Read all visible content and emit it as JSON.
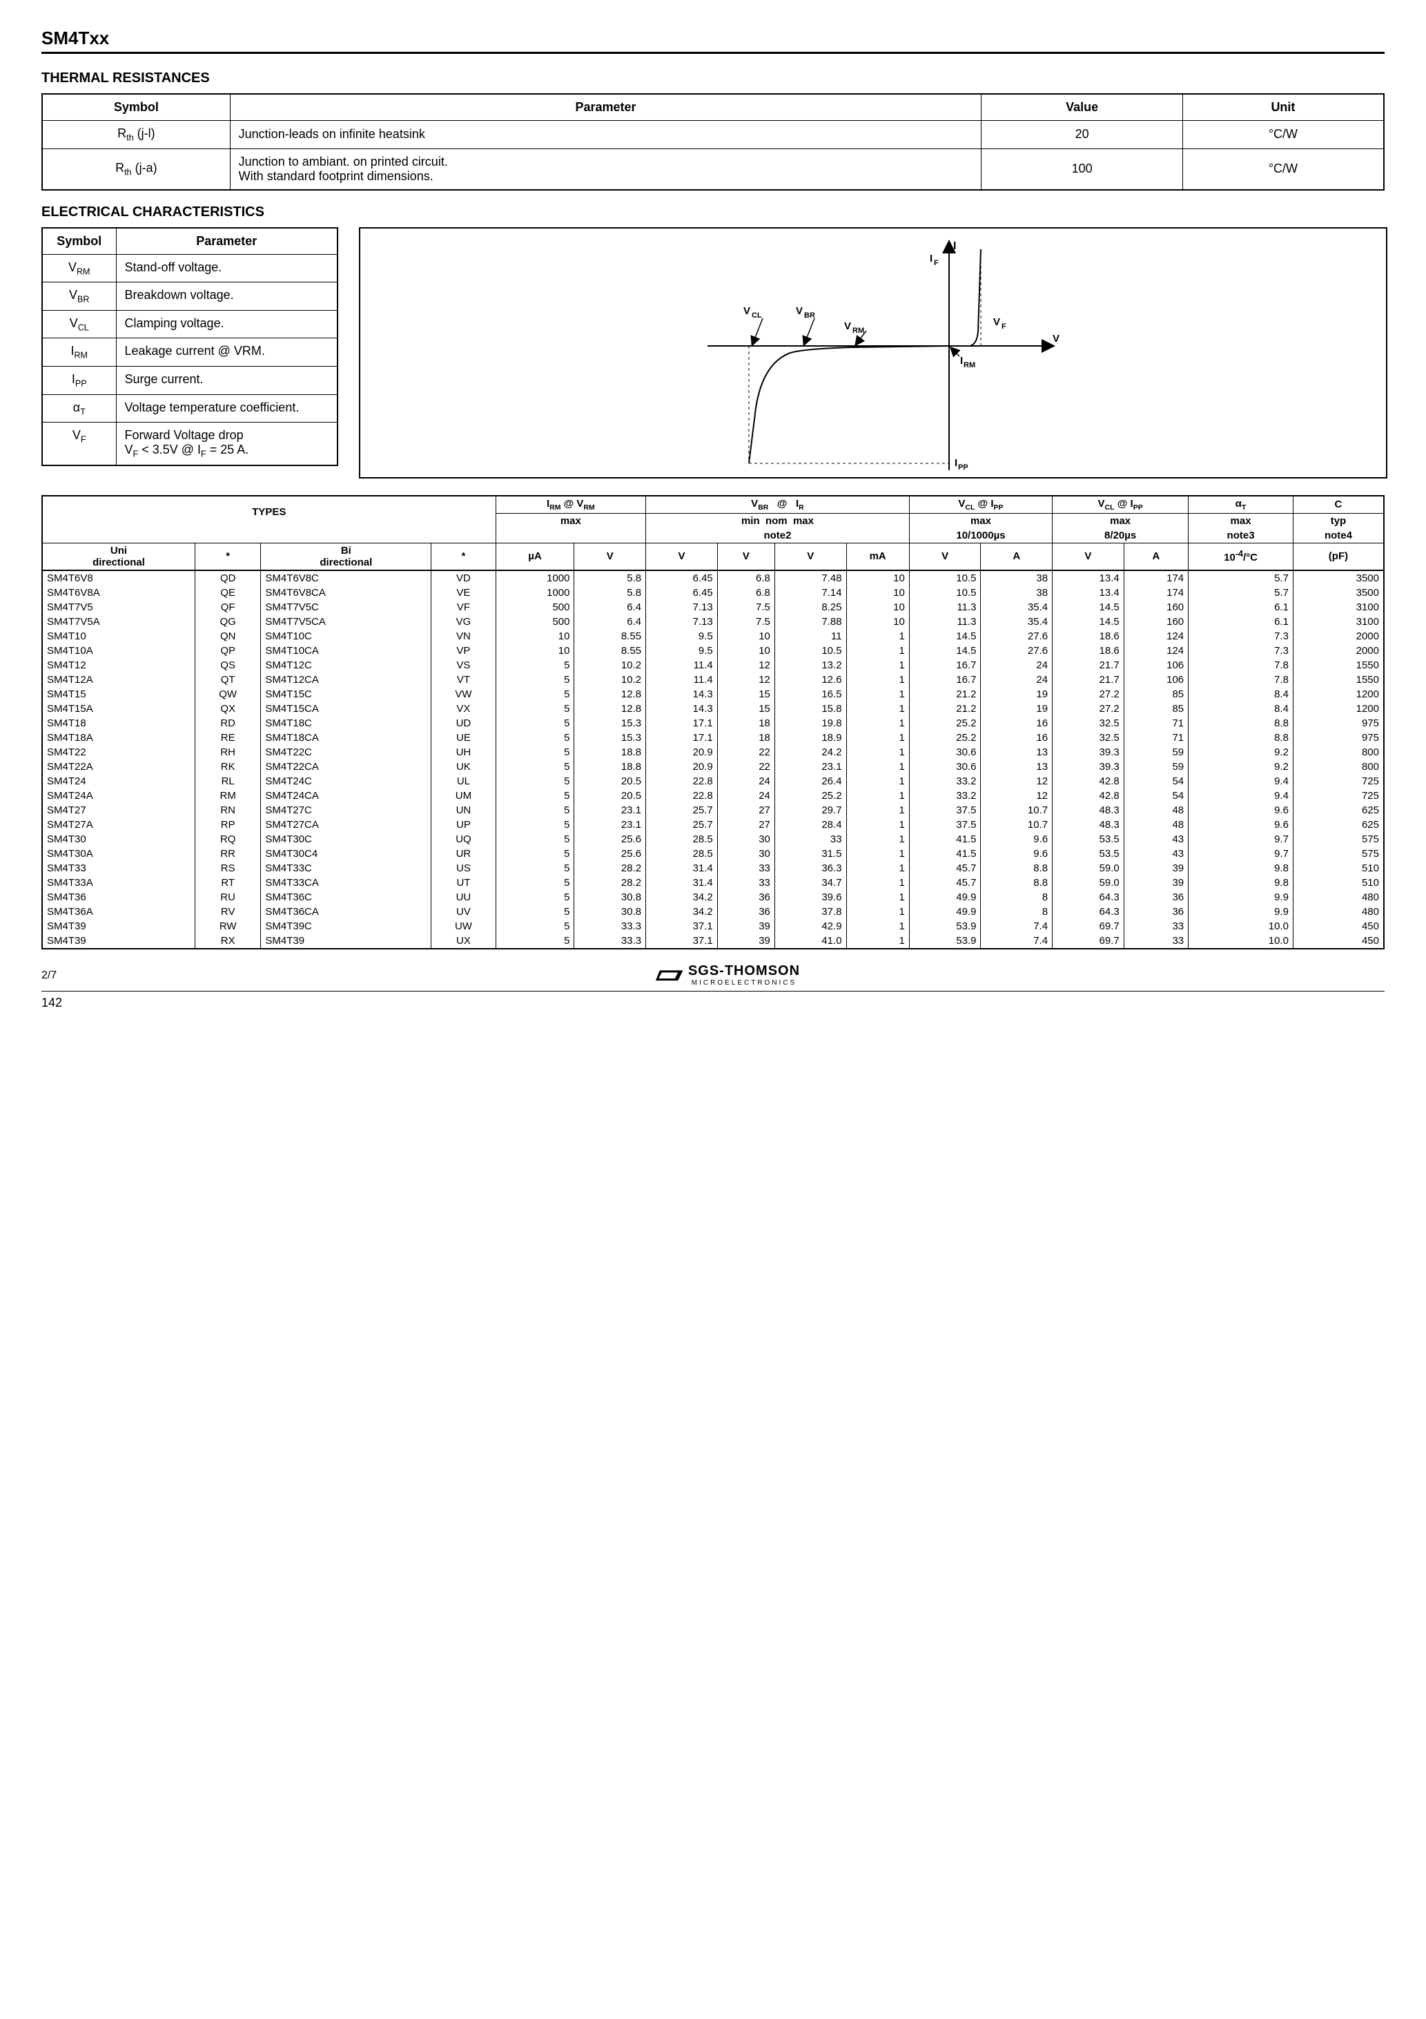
{
  "title": "SM4Txx",
  "thermal": {
    "heading": "THERMAL RESISTANCES",
    "cols": [
      "Symbol",
      "Parameter",
      "Value",
      "Unit"
    ],
    "rows": [
      {
        "sym": "R<sub>th</sub> (j-l)",
        "param": "Junction-leads on infinite heatsink",
        "val": "20",
        "unit": "°C/W"
      },
      {
        "sym": "R<sub>th</sub> (j-a)",
        "param": "Junction to ambiant. on printed circuit.\nWith standard footprint dimensions.",
        "val": "100",
        "unit": "°C/W"
      }
    ]
  },
  "elec": {
    "heading": "ELECTRICAL CHARACTERISTICS",
    "cols": [
      "Symbol",
      "Parameter"
    ],
    "rows": [
      {
        "sym": "V<sub>RM</sub>",
        "param": "Stand-off voltage."
      },
      {
        "sym": "V<sub>BR</sub>",
        "param": "Breakdown voltage."
      },
      {
        "sym": "V<sub>CL</sub>",
        "param": "Clamping voltage."
      },
      {
        "sym": "I<sub>RM</sub>",
        "param": "Leakage current @ VRM."
      },
      {
        "sym": "I<sub>PP</sub>",
        "param": "Surge current."
      },
      {
        "sym": "α<sub>T</sub>",
        "param": "Voltage temperature coefficient."
      },
      {
        "sym": "V<sub>F</sub>",
        "param": "Forward Voltage drop\nV<sub>F</sub> < 3.5V @ I<sub>F</sub> = 25 A."
      }
    ]
  },
  "iv_diagram": {
    "labels": {
      "I": "I",
      "IF": "I<sub>F</sub>",
      "VCL": "V<sub>CL</sub>",
      "VBR": "V<sub>BR</sub>",
      "VRM": "V<sub>RM</sub>",
      "VF": "V<sub>F</sub>",
      "IRM": "I<sub>RM</sub>",
      "IPP": "I<sub>PP</sub>",
      "V": "V"
    }
  },
  "big": {
    "head1": [
      "TYPES",
      "I<sub>RM</sub> @ V<sub>RM</sub>",
      "V<sub>BR</sub>&nbsp;&nbsp;&nbsp;@&nbsp;&nbsp;&nbsp;I<sub>R</sub>",
      "V<sub>CL</sub> @ I<sub>PP</sub>",
      "V<sub>CL</sub> @ I<sub>PP</sub>",
      "α<sub>T</sub>",
      "C"
    ],
    "head2": [
      "max",
      "min&nbsp;&nbsp;nom&nbsp;&nbsp;max",
      "max",
      "max",
      "max",
      "typ"
    ],
    "head3": [
      "note2",
      "10/1000µs",
      "8/20µs",
      "note3",
      "note4"
    ],
    "unitsRow": [
      "Uni\ndirectional",
      "*",
      "Bi\ndirectional",
      "*",
      "µA",
      "V",
      "V",
      "V",
      "V",
      "mA",
      "V",
      "A",
      "V",
      "A",
      "10<sup>-4</sup>/°C",
      "(pF)"
    ],
    "rows": [
      [
        "SM4T6V8",
        "QD",
        "SM4T6V8C",
        "VD",
        "1000",
        "5.8",
        "6.45",
        "6.8",
        "7.48",
        "10",
        "10.5",
        "38",
        "13.4",
        "174",
        "5.7",
        "3500"
      ],
      [
        "SM4T6V8A",
        "QE",
        "SM4T6V8CA",
        "VE",
        "1000",
        "5.8",
        "6.45",
        "6.8",
        "7.14",
        "10",
        "10.5",
        "38",
        "13.4",
        "174",
        "5.7",
        "3500"
      ],
      [
        "SM4T7V5",
        "QF",
        "SM4T7V5C",
        "VF",
        "500",
        "6.4",
        "7.13",
        "7.5",
        "8.25",
        "10",
        "11.3",
        "35.4",
        "14.5",
        "160",
        "6.1",
        "3100"
      ],
      [
        "SM4T7V5A",
        "QG",
        "SM4T7V5CA",
        "VG",
        "500",
        "6.4",
        "7.13",
        "7.5",
        "7.88",
        "10",
        "11.3",
        "35.4",
        "14.5",
        "160",
        "6.1",
        "3100"
      ],
      [
        "SM4T10",
        "QN",
        "SM4T10C",
        "VN",
        "10",
        "8.55",
        "9.5",
        "10",
        "11",
        "1",
        "14.5",
        "27.6",
        "18.6",
        "124",
        "7.3",
        "2000"
      ],
      [
        "SM4T10A",
        "QP",
        "SM4T10CA",
        "VP",
        "10",
        "8.55",
        "9.5",
        "10",
        "10.5",
        "1",
        "14.5",
        "27.6",
        "18.6",
        "124",
        "7.3",
        "2000"
      ],
      [
        "SM4T12",
        "QS",
        "SM4T12C",
        "VS",
        "5",
        "10.2",
        "11.4",
        "12",
        "13.2",
        "1",
        "16.7",
        "24",
        "21.7",
        "106",
        "7.8",
        "1550"
      ],
      [
        "SM4T12A",
        "QT",
        "SM4T12CA",
        "VT",
        "5",
        "10.2",
        "11.4",
        "12",
        "12.6",
        "1",
        "16.7",
        "24",
        "21.7",
        "106",
        "7.8",
        "1550"
      ],
      [
        "SM4T15",
        "QW",
        "SM4T15C",
        "VW",
        "5",
        "12.8",
        "14.3",
        "15",
        "16.5",
        "1",
        "21.2",
        "19",
        "27.2",
        "85",
        "8.4",
        "1200"
      ],
      [
        "SM4T15A",
        "QX",
        "SM4T15CA",
        "VX",
        "5",
        "12.8",
        "14.3",
        "15",
        "15.8",
        "1",
        "21.2",
        "19",
        "27.2",
        "85",
        "8.4",
        "1200"
      ],
      [
        "SM4T18",
        "RD",
        "SM4T18C",
        "UD",
        "5",
        "15.3",
        "17.1",
        "18",
        "19.8",
        "1",
        "25.2",
        "16",
        "32.5",
        "71",
        "8.8",
        "975"
      ],
      [
        "SM4T18A",
        "RE",
        "SM4T18CA",
        "UE",
        "5",
        "15.3",
        "17.1",
        "18",
        "18.9",
        "1",
        "25.2",
        "16",
        "32.5",
        "71",
        "8.8",
        "975"
      ],
      [
        "SM4T22",
        "RH",
        "SM4T22C",
        "UH",
        "5",
        "18.8",
        "20.9",
        "22",
        "24.2",
        "1",
        "30.6",
        "13",
        "39.3",
        "59",
        "9.2",
        "800"
      ],
      [
        "SM4T22A",
        "RK",
        "SM4T22CA",
        "UK",
        "5",
        "18.8",
        "20.9",
        "22",
        "23.1",
        "1",
        "30.6",
        "13",
        "39.3",
        "59",
        "9.2",
        "800"
      ],
      [
        "SM4T24",
        "RL",
        "SM4T24C",
        "UL",
        "5",
        "20.5",
        "22.8",
        "24",
        "26.4",
        "1",
        "33.2",
        "12",
        "42.8",
        "54",
        "9.4",
        "725"
      ],
      [
        "SM4T24A",
        "RM",
        "SM4T24CA",
        "UM",
        "5",
        "20.5",
        "22.8",
        "24",
        "25.2",
        "1",
        "33.2",
        "12",
        "42.8",
        "54",
        "9.4",
        "725"
      ],
      [
        "SM4T27",
        "RN",
        "SM4T27C",
        "UN",
        "5",
        "23.1",
        "25.7",
        "27",
        "29.7",
        "1",
        "37.5",
        "10.7",
        "48.3",
        "48",
        "9.6",
        "625"
      ],
      [
        "SM4T27A",
        "RP",
        "SM4T27CA",
        "UP",
        "5",
        "23.1",
        "25.7",
        "27",
        "28.4",
        "1",
        "37.5",
        "10.7",
        "48.3",
        "48",
        "9.6",
        "625"
      ],
      [
        "SM4T30",
        "RQ",
        "SM4T30C",
        "UQ",
        "5",
        "25.6",
        "28.5",
        "30",
        "33",
        "1",
        "41.5",
        "9.6",
        "53.5",
        "43",
        "9.7",
        "575"
      ],
      [
        "SM4T30A",
        "RR",
        "SM4T30C4",
        "UR",
        "5",
        "25.6",
        "28.5",
        "30",
        "31.5",
        "1",
        "41.5",
        "9.6",
        "53.5",
        "43",
        "9.7",
        "575"
      ],
      [
        "SM4T33",
        "RS",
        "SM4T33C",
        "US",
        "5",
        "28.2",
        "31.4",
        "33",
        "36.3",
        "1",
        "45.7",
        "8.8",
        "59.0",
        "39",
        "9.8",
        "510"
      ],
      [
        "SM4T33A",
        "RT",
        "SM4T33CA",
        "UT",
        "5",
        "28.2",
        "31.4",
        "33",
        "34.7",
        "1",
        "45.7",
        "8.8",
        "59.0",
        "39",
        "9.8",
        "510"
      ],
      [
        "SM4T36",
        "RU",
        "SM4T36C",
        "UU",
        "5",
        "30.8",
        "34.2",
        "36",
        "39.6",
        "1",
        "49.9",
        "8",
        "64.3",
        "36",
        "9.9",
        "480"
      ],
      [
        "SM4T36A",
        "RV",
        "SM4T36CA",
        "UV",
        "5",
        "30.8",
        "34.2",
        "36",
        "37.8",
        "1",
        "49.9",
        "8",
        "64.3",
        "36",
        "9.9",
        "480"
      ],
      [
        "SM4T39",
        "RW",
        "SM4T39C",
        "UW",
        "5",
        "33.3",
        "37.1",
        "39",
        "42.9",
        "1",
        "53.9",
        "7.4",
        "69.7",
        "33",
        "10.0",
        "450"
      ],
      [
        "SM4T39",
        "RX",
        "SM4T39",
        "UX",
        "5",
        "33.3",
        "37.1",
        "39",
        "41.0",
        "1",
        "53.9",
        "7.4",
        "69.7",
        "33",
        "10.0",
        "450"
      ]
    ]
  },
  "footer": {
    "left": "2/7",
    "logo_main": "SGS-THOMSON",
    "logo_sub": "MICROELECTRONICS",
    "page": "142"
  }
}
